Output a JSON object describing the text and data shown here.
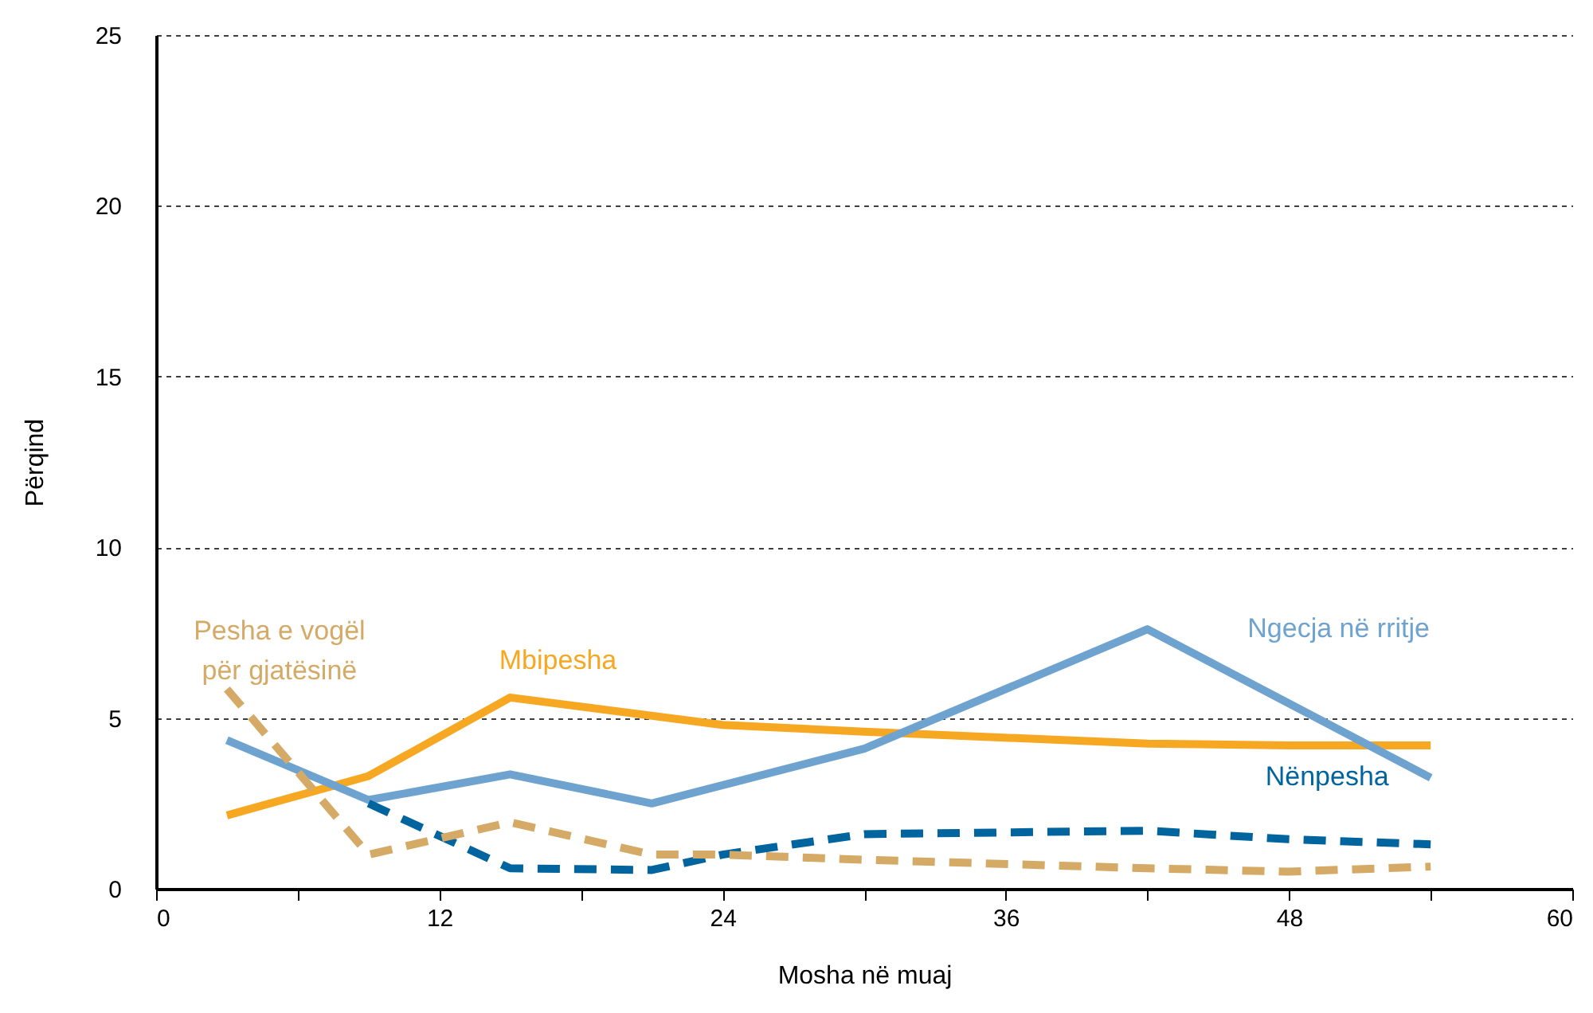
{
  "chart_data": {
    "type": "line",
    "xlabel": "Mosha në muaj",
    "ylabel": "Përqind",
    "xlim": [
      0,
      60
    ],
    "xticks": [
      0,
      {
        "value": 6,
        "label": null
      },
      12,
      {
        "value": 18,
        "label": null
      },
      24,
      {
        "value": 30,
        "label": null
      },
      36,
      {
        "value": 42,
        "label": null
      },
      48,
      {
        "value": 54,
        "label": null
      },
      60
    ],
    "ylim": [
      0,
      25
    ],
    "yticks": [
      0,
      5,
      10,
      15,
      20,
      25
    ],
    "grid": "y",
    "legend": false,
    "marker": "none",
    "series": [
      {
        "name": "Mbipesha",
        "color": "#f7a823",
        "line_style": "solid",
        "x": [
          3,
          9,
          15,
          24,
          30,
          42,
          48,
          54
        ],
        "values": [
          2.15,
          3.3,
          5.6,
          4.8,
          4.6,
          4.25,
          4.2,
          4.2
        ]
      },
      {
        "name": "Ngecja në rritje",
        "color": "#6fa3cf",
        "line_style": "solid",
        "x": [
          3,
          9,
          15,
          21,
          30,
          42,
          54
        ],
        "values": [
          4.35,
          2.6,
          3.35,
          2.5,
          4.1,
          7.6,
          3.25
        ]
      },
      {
        "name": "Nënpesha",
        "color": "#00649e",
        "line_style": "dashed",
        "x": [
          9,
          15,
          21,
          24,
          30,
          42,
          48,
          54
        ],
        "values": [
          2.5,
          0.6,
          0.55,
          1.0,
          1.6,
          1.7,
          1.45,
          1.3
        ]
      },
      {
        "name": "Pesha e vogël për gjatësinë",
        "color": "#d4aa66",
        "line_style": "dashed",
        "x": [
          3,
          9,
          15,
          21,
          24,
          30,
          42,
          48,
          54
        ],
        "values": [
          5.85,
          1.0,
          1.95,
          1.0,
          1.0,
          0.85,
          0.6,
          0.5,
          0.65
        ]
      }
    ]
  }
}
